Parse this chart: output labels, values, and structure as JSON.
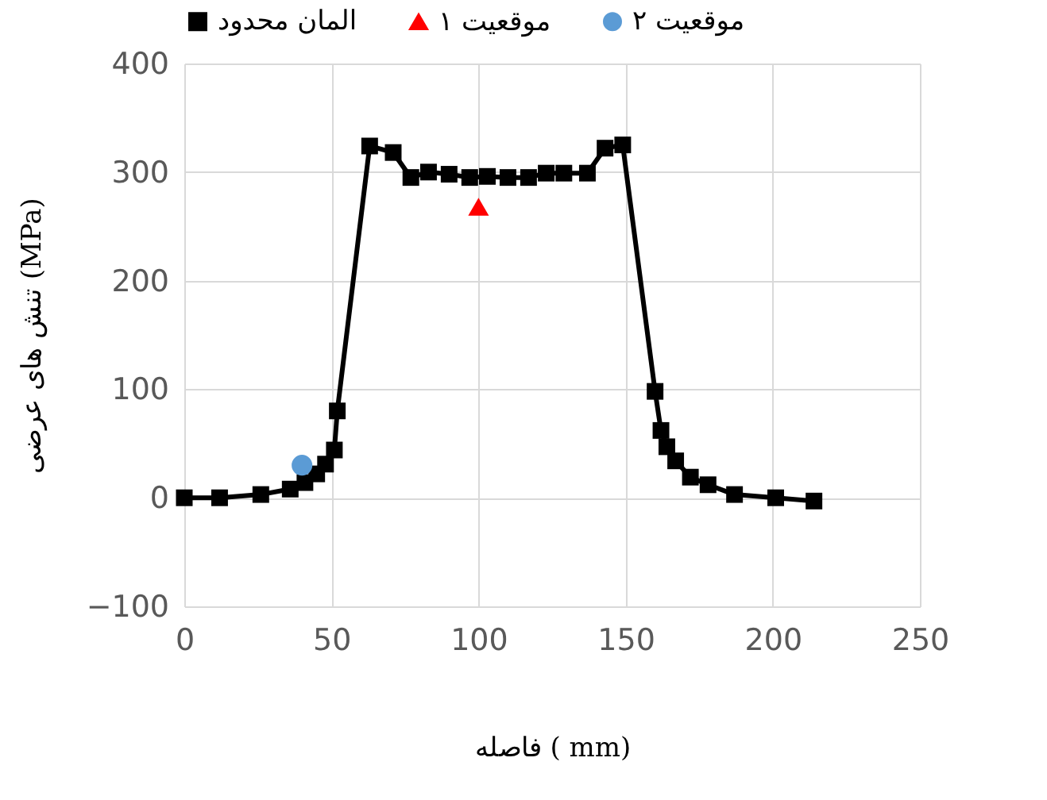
{
  "chart_data": {
    "type": "line",
    "xlabel": "فاصله ( mm)",
    "ylabel": "تنش های عرضی (MPa)",
    "xlim": [
      0,
      250
    ],
    "xticks": [
      0,
      50,
      100,
      150,
      200,
      250
    ],
    "ylim": [
      -100,
      400
    ],
    "yticks": [
      -100,
      0,
      100,
      200,
      300,
      400
    ],
    "grid": true,
    "legend": "top",
    "series": [
      {
        "name": "المان محدود",
        "marker": "square",
        "color": "#000000",
        "x": [
          0,
          12,
          26,
          36,
          41,
          45,
          48,
          51,
          52,
          63,
          71,
          77,
          83,
          90,
          97,
          103,
          110,
          117,
          123,
          129,
          137,
          143,
          149,
          160,
          162,
          164,
          167,
          172,
          178,
          187,
          201,
          214
        ],
        "values": [
          0,
          0,
          3,
          8,
          14,
          22,
          31,
          44,
          80,
          324,
          318,
          295,
          300,
          298,
          295,
          296,
          295,
          295,
          299,
          299,
          299,
          322,
          325,
          98,
          62,
          47,
          34,
          19,
          12,
          3,
          0,
          -3
        ]
      },
      {
        "name": "موقعیت ۱",
        "type": "scatter",
        "marker": "triangle",
        "color": "#ff0000",
        "x": [
          100
        ],
        "values": [
          268
        ]
      },
      {
        "name": "موقعیت ۲",
        "type": "scatter",
        "marker": "circle",
        "color": "#5b9bd5",
        "x": [
          40
        ],
        "values": [
          30
        ]
      }
    ]
  }
}
